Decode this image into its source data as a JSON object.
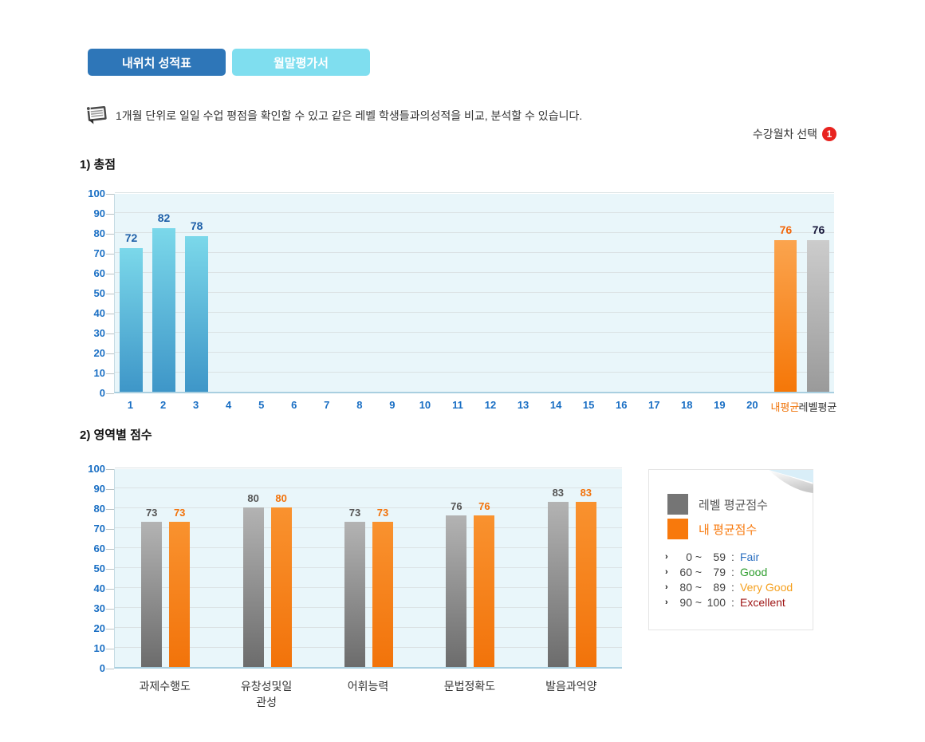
{
  "tabs": [
    {
      "label": "내위치 성적표",
      "active": true
    },
    {
      "label": "월말평가서",
      "active": false
    }
  ],
  "description": {
    "text": "1개월 단위로 일일 수업 평점을 확인할 수 있고 같은 레벨 학생들과의성적을 비교, 분석할 수 있습니다."
  },
  "month_select": {
    "label": "수강월차 선택",
    "badge": "1",
    "badge_color": "#e8231f"
  },
  "sections": {
    "first": "1) 총점",
    "second": "2) 영역별 점수"
  },
  "chart_data": [
    {
      "type": "bar",
      "title": "1) 총점",
      "ylim": [
        0,
        100
      ],
      "ytick_step": 10,
      "grid": true,
      "categories": [
        "1",
        "2",
        "3",
        "4",
        "5",
        "6",
        "7",
        "8",
        "9",
        "10",
        "11",
        "12",
        "13",
        "14",
        "15",
        "16",
        "17",
        "18",
        "19",
        "20"
      ],
      "daily_values": [
        72,
        82,
        78,
        null,
        null,
        null,
        null,
        null,
        null,
        null,
        null,
        null,
        null,
        null,
        null,
        null,
        null,
        null,
        null,
        null
      ],
      "summary_bars": [
        {
          "label": "내평균",
          "value": 76,
          "style": "orange",
          "label_color": "#f0750b",
          "value_color": "#f2660a"
        },
        {
          "label": "레벨평균",
          "value": 76,
          "style": "gray",
          "label_color": "#333333",
          "value_color": "#17173a"
        }
      ],
      "bar_style": "blue",
      "value_label_color": "#1d5fa8"
    },
    {
      "type": "bar",
      "title": "2) 영역별 점수",
      "ylim": [
        0,
        100
      ],
      "ytick_step": 10,
      "grid": true,
      "categories": [
        "과제수행도",
        "유창성및일관성",
        "어휘능력",
        "문법정확도",
        "발음과억양"
      ],
      "series": [
        {
          "name": "레벨 평균점수",
          "values": [
            73,
            80,
            73,
            76,
            83
          ],
          "style": "gray2",
          "value_color": "#555555"
        },
        {
          "name": "내 평균점수",
          "values": [
            73,
            80,
            73,
            76,
            83
          ],
          "style": "orange2",
          "value_color": "#f2720a"
        }
      ]
    }
  ],
  "legend": {
    "items": [
      {
        "label": "레벨 평균점수",
        "color": "#757575",
        "text_color": "#555555"
      },
      {
        "label": "내 평균점수",
        "color": "#f8790c",
        "text_color": "#f8790c"
      }
    ],
    "caret": "›",
    "tilde": "~",
    "separator": ":",
    "ranges": [
      {
        "from": "0",
        "to": "59",
        "label": "Fair",
        "color": "#2a6fc0"
      },
      {
        "from": "60",
        "to": "79",
        "label": "Good",
        "color": "#2f9e2f"
      },
      {
        "from": "80",
        "to": "89",
        "label": "Very Good",
        "color": "#f5a01e"
      },
      {
        "from": "90",
        "to": "100",
        "label": "Excellent",
        "color": "#9e1414"
      }
    ]
  },
  "colors": {
    "tab_active": "#2e76b8",
    "tab_inactive": "#7fdeef",
    "axis_label": "#1a6fc4",
    "plot_bg": "#e9f6fa"
  }
}
